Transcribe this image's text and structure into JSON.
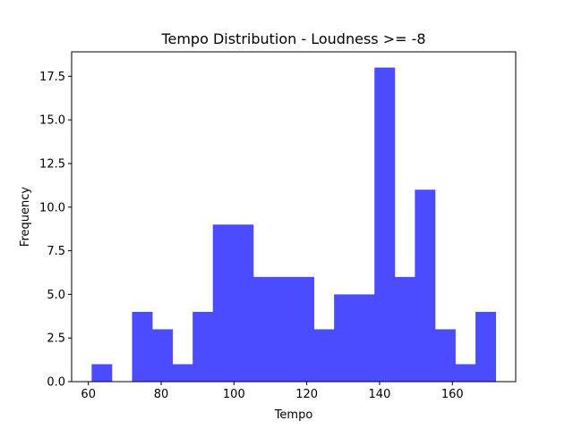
{
  "chart_data": {
    "type": "bar",
    "title": "Tempo Distribution - Loudness >= -8",
    "xlabel": "Tempo",
    "ylabel": "Frequency",
    "bin_edges": [
      60.9,
      66.45,
      72.0,
      77.55,
      83.1,
      88.65,
      94.2,
      99.75,
      105.3,
      110.85,
      116.4,
      121.95,
      127.5,
      133.05,
      138.6,
      144.15,
      149.7,
      155.25,
      160.8,
      166.35,
      171.9
    ],
    "values": [
      1,
      0,
      4,
      3,
      1,
      4,
      9,
      9,
      6,
      6,
      6,
      3,
      5,
      5,
      18,
      6,
      11,
      3,
      1,
      4
    ],
    "xlim": [
      55.4,
      177.4
    ],
    "ylim": [
      0,
      18.9
    ],
    "xticks": [
      60,
      80,
      100,
      120,
      140,
      160
    ],
    "xtick_labels": [
      "60",
      "80",
      "100",
      "120",
      "140",
      "160"
    ],
    "yticks": [
      0,
      2.5,
      5,
      7.5,
      10,
      12.5,
      15,
      17.5
    ],
    "ytick_labels": [
      "0.0",
      "2.5",
      "5.0",
      "7.5",
      "10.0",
      "12.5",
      "15.0",
      "17.5"
    ],
    "bar_color": "#4b4bff",
    "grid": false
  }
}
